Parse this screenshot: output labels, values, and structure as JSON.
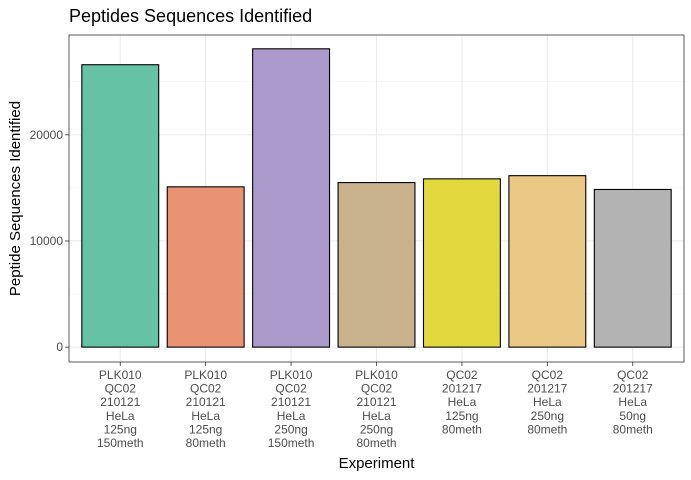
{
  "chart_data": {
    "type": "bar",
    "title": "Peptides Sequences Identified",
    "xlabel": "Experiment",
    "ylabel": "Peptide Sequences Identified",
    "ylim": [
      -1400,
      29400
    ],
    "yticks": [
      0,
      10000,
      20000
    ],
    "ytick_labels": [
      "0",
      "10000",
      "20000"
    ],
    "categories": [
      [
        "PLK010",
        "QC02",
        "210121",
        "HeLa",
        "125ng",
        "150meth"
      ],
      [
        "PLK010",
        "QC02",
        "210121",
        "HeLa",
        "125ng",
        "80meth"
      ],
      [
        "PLK010",
        "QC02",
        "210121",
        "HeLa",
        "250ng",
        "150meth"
      ],
      [
        "PLK010",
        "QC02",
        "210121",
        "HeLa",
        "250ng",
        "80meth"
      ],
      [
        "QC02",
        "201217",
        "HeLa",
        "125ng",
        "80meth"
      ],
      [
        "QC02",
        "201217",
        "HeLa",
        "250ng",
        "80meth"
      ],
      [
        "QC02",
        "201217",
        "HeLa",
        "50ng",
        "80meth"
      ]
    ],
    "values": [
      26600,
      15100,
      28100,
      15500,
      15850,
      16150,
      14850
    ],
    "colors": [
      "#66c2a5",
      "#e99374",
      "#ab9acc",
      "#c9b38c",
      "#e3d93e",
      "#ebc885",
      "#b3b3b3"
    ],
    "grid": true,
    "legend": "none"
  }
}
